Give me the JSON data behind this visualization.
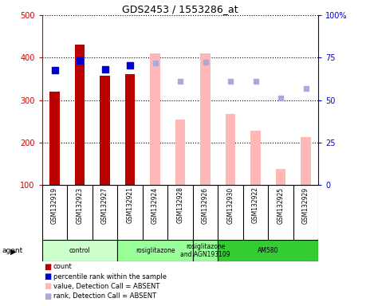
{
  "title": "GDS2453 / 1553286_at",
  "samples": [
    "GSM132919",
    "GSM132923",
    "GSM132927",
    "GSM132921",
    "GSM132924",
    "GSM132928",
    "GSM132926",
    "GSM132930",
    "GSM132922",
    "GSM132925",
    "GSM132929"
  ],
  "bar_values": [
    320,
    430,
    357,
    362,
    null,
    null,
    null,
    null,
    null,
    null,
    null
  ],
  "bar_color_present": "#bb0000",
  "bar_values_absent": [
    null,
    null,
    null,
    null,
    410,
    255,
    410,
    268,
    228,
    138,
    213
  ],
  "bar_color_absent": "#ffb8b8",
  "rank_present": [
    370,
    393,
    372,
    383,
    null,
    null,
    null,
    null,
    null,
    null,
    null
  ],
  "rank_color_present": "#0000cc",
  "rank_absent": [
    null,
    null,
    null,
    null,
    388,
    344,
    390,
    344,
    344,
    305,
    328
  ],
  "rank_color_absent": "#aaaadd",
  "ylim_left": [
    100,
    500
  ],
  "ylim_right": [
    0,
    100
  ],
  "yticks_left": [
    100,
    200,
    300,
    400,
    500
  ],
  "yticks_right": [
    0,
    25,
    50,
    75,
    100
  ],
  "yticklabels_right": [
    "0",
    "25",
    "50",
    "75",
    "100%"
  ],
  "left_tick_color": "#cc0000",
  "right_tick_color": "#0000cc",
  "agent_groups": [
    {
      "label": "control",
      "span": [
        0,
        3
      ],
      "color": "#ccffcc"
    },
    {
      "label": "rosiglitazone",
      "span": [
        3,
        6
      ],
      "color": "#99ff99"
    },
    {
      "label": "rosiglitazone\nand AGN193109",
      "span": [
        6,
        7
      ],
      "color": "#99ff99"
    },
    {
      "label": "AM580",
      "span": [
        7,
        11
      ],
      "color": "#33cc33"
    }
  ],
  "legend_items": [
    {
      "label": "count",
      "color": "#bb0000"
    },
    {
      "label": "percentile rank within the sample",
      "color": "#0000cc"
    },
    {
      "label": "value, Detection Call = ABSENT",
      "color": "#ffb8b8"
    },
    {
      "label": "rank, Detection Call = ABSENT",
      "color": "#aaaadd"
    }
  ],
  "background_color": "#ffffff",
  "bar_width": 0.4,
  "rank_marker_size": 6
}
